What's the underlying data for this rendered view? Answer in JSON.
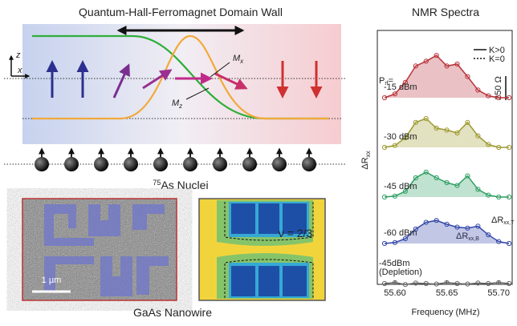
{
  "figure": {
    "domain_wall": {
      "title": "Quantum-Hall-Ferromagnet Domain Wall",
      "axis_z": "z",
      "axis_x": "x",
      "mx_label": "M",
      "mx_sub": "x",
      "mz_label": "M",
      "mz_sub": "z"
    },
    "nuclei": {
      "label_sup": "75",
      "label": "As Nuclei"
    },
    "nanowire": {
      "scale_bar": "1 µm",
      "filling": "ν = 2/3",
      "title": "GaAs Nanowire"
    }
  },
  "chart_data": {
    "type": "line",
    "title": "NMR Spectra",
    "x_label": "Frequency (MHz)",
    "y_label": "ΔR",
    "y_label_sub": "xx",
    "x": [
      55.59,
      55.6,
      55.61,
      55.62,
      55.63,
      55.64,
      55.65,
      55.66,
      55.67,
      55.68,
      55.69,
      55.7,
      55.71
    ],
    "xlim": [
      55.583,
      55.713
    ],
    "xticks": [
      {
        "value": 55.6,
        "label": "55.60"
      },
      {
        "value": 55.65,
        "label": "55.65"
      },
      {
        "value": 55.7,
        "label": "55.70"
      }
    ],
    "power_label": "P",
    "power_sub": "rf",
    "power_eq": "=",
    "series": [
      {
        "name": "-15 dBm",
        "color": "#b8323a",
        "values": [
          0,
          40,
          160,
          330,
          380,
          440,
          330,
          350,
          220,
          80,
          20,
          0,
          0
        ]
      },
      {
        "name": "-30 dBm",
        "color": "#9e9a30",
        "values": [
          0,
          20,
          100,
          260,
          300,
          200,
          180,
          150,
          260,
          120,
          30,
          0,
          0
        ]
      },
      {
        "name": "-45 dBm",
        "color": "#2e9e62",
        "values": [
          0,
          10,
          60,
          200,
          260,
          200,
          150,
          120,
          220,
          80,
          20,
          0,
          0
        ]
      },
      {
        "name": "-60 dBm",
        "color": "#3447a8",
        "values": [
          0,
          10,
          50,
          150,
          220,
          240,
          200,
          170,
          160,
          180,
          90,
          20,
          0
        ]
      },
      {
        "name": "-45dBm",
        "color": "#666666",
        "values": [
          0,
          10,
          -10,
          5,
          0,
          -5,
          10,
          0,
          -5,
          5,
          0,
          10,
          0
        ]
      }
    ],
    "depletion_label": "(Depletion)",
    "legend_entries": [
      {
        "label": "K>0",
        "style": "solid"
      },
      {
        "label": "K=0",
        "style": "dashed"
      }
    ],
    "scale_bar": {
      "value": 250,
      "label": "250 Ω"
    },
    "annotations": [
      {
        "main": "ΔR",
        "sub": "xx,T"
      },
      {
        "main": "ΔR",
        "sub": "xx,B"
      }
    ]
  }
}
